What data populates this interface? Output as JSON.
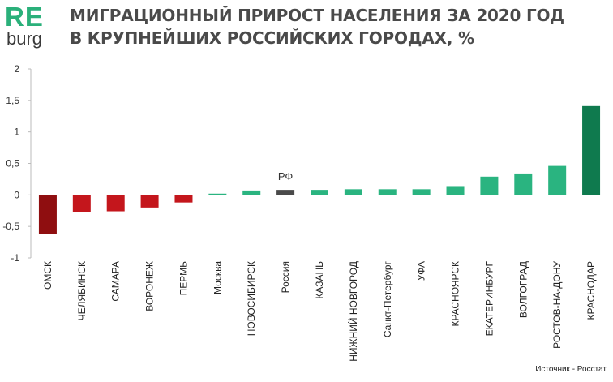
{
  "logo": {
    "re": "RE",
    "burg": "burg",
    "color": "#2ab07a"
  },
  "title": "МИГРАЦИОННЫЙ ПРИРОСТ НАСЕЛЕНИЯ ЗА 2020 ГОД В КРУПНЕЙШИХ РОССИЙСКИХ ГОРОДАХ, %",
  "source": "Источник - Росстат",
  "colors": {
    "dark_red": "#8f0e10",
    "red": "#c4161c",
    "gray": "#4a4a4a",
    "green": "#2ab480",
    "dark_green": "#0f7a4e",
    "axis": "#bbbbbb"
  },
  "chart_data": {
    "type": "bar",
    "categories": [
      "ОМСК",
      "ЧЕЛЯБИНСК",
      "САМАРА",
      "ВОРОНЕЖ",
      "ПЕРМЬ",
      "Москва",
      "НОВОСИБИРСК",
      "Россия",
      "КАЗАНЬ",
      "НИЖНИЙ НОВГОРОД",
      "Санкт-Петербург",
      "УФА",
      "КРАСНОЯРСК",
      "ЕКАТЕРИНБУРГ",
      "ВОЛГОГРАД",
      "РОСТОВ-НА-ДОНУ",
      "КРАСНОДАР"
    ],
    "values": [
      -0.62,
      -0.27,
      -0.26,
      -0.2,
      -0.12,
      0.02,
      0.07,
      0.08,
      0.08,
      0.09,
      0.09,
      0.09,
      0.14,
      0.29,
      0.34,
      0.46,
      1.41
    ],
    "bar_colors": [
      "dark_red",
      "red",
      "red",
      "red",
      "red",
      "green",
      "green",
      "gray",
      "green",
      "green",
      "green",
      "green",
      "green",
      "green",
      "green",
      "green",
      "dark_green"
    ],
    "annotations": [
      {
        "category": "Россия",
        "text": "РФ"
      }
    ],
    "yticks": [
      "2",
      "1,5",
      "1",
      "0,5",
      "0",
      "-0,5",
      "-1"
    ],
    "ylim": [
      -1,
      2
    ],
    "grid": false,
    "legend": "none"
  }
}
